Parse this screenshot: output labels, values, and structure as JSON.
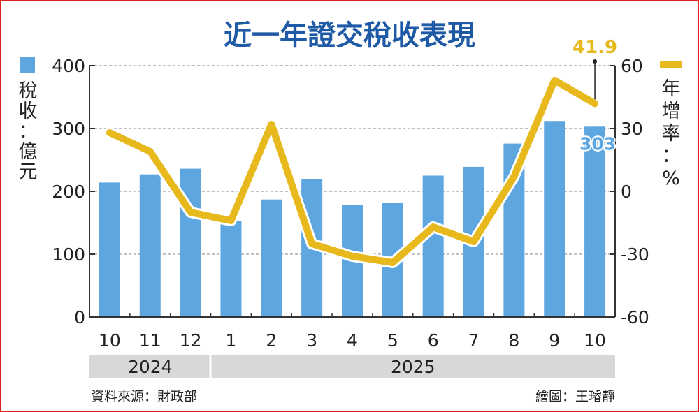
{
  "chart_data": {
    "type": "bar+line",
    "title": "近一年證交稅收表現",
    "categories": [
      "10",
      "11",
      "12",
      "1",
      "2",
      "3",
      "4",
      "5",
      "6",
      "7",
      "8",
      "9",
      "10"
    ],
    "year_groups": [
      {
        "label": "2024",
        "count": 3
      },
      {
        "label": "2025",
        "count": 10
      }
    ],
    "series": [
      {
        "name": "稅收：億元",
        "type": "bar",
        "axis": "left",
        "color": "#5ea6e0",
        "values": [
          214,
          227,
          236,
          153,
          187,
          220,
          178,
          182,
          225,
          239,
          276,
          312,
          303
        ]
      },
      {
        "name": "年增率：%",
        "type": "line",
        "axis": "right",
        "color": "#e8b91c",
        "values": [
          28,
          19,
          -10,
          -14,
          32,
          -25,
          -31,
          -34,
          -17,
          -24,
          7,
          53,
          41.9
        ]
      }
    ],
    "left_axis": {
      "label": "稅收：億元",
      "ylim": [
        0,
        400
      ],
      "ticks": [
        "0",
        "100",
        "200",
        "300",
        "400"
      ]
    },
    "right_axis": {
      "label": "年增率：%",
      "ylim": [
        -60,
        60
      ],
      "ticks": [
        "-60",
        "-30",
        "0",
        "30",
        "60"
      ]
    },
    "annotations": {
      "last_bar": "303",
      "last_line": "41.9"
    },
    "grid": "dashed horizontal",
    "legend": "top-left and top-right"
  },
  "footer": {
    "source": "資料來源：財政部",
    "credit": "繪圖：王璿靜"
  }
}
